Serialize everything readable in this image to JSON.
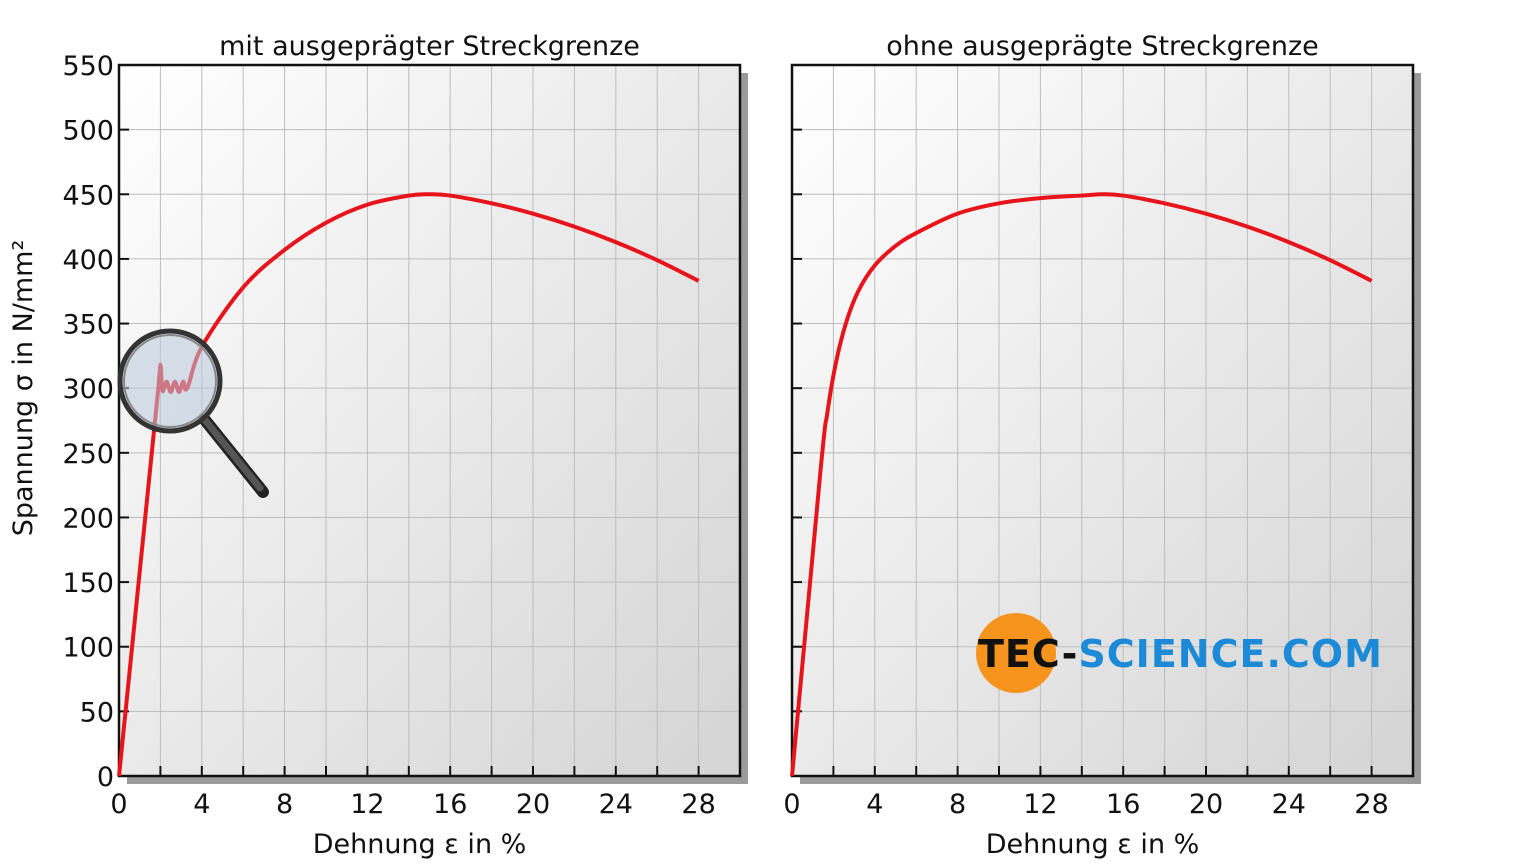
{
  "chart_data": [
    {
      "type": "line",
      "title": "mit ausgeprägter Streckgrenze",
      "xlabel": "Dehnung ε in %",
      "ylabel": "Spannung σ in N/mm²",
      "xlim": [
        0,
        30
      ],
      "ylim": [
        0,
        550
      ],
      "xticks": [
        0,
        4,
        8,
        12,
        16,
        20,
        24,
        28
      ],
      "yticks": [
        0,
        50,
        100,
        150,
        200,
        250,
        300,
        350,
        400,
        450,
        500,
        550
      ],
      "grid": true,
      "series": [
        {
          "color": "#e8141c",
          "x": [
            0,
            1.9,
            2.0,
            2.1,
            2.3,
            2.5,
            2.7,
            2.9,
            3.1,
            3.3,
            4,
            6,
            8,
            10,
            12,
            14,
            15,
            16,
            18,
            20,
            22,
            24,
            26,
            28
          ],
          "y": [
            0,
            300,
            318,
            298,
            305,
            297,
            305,
            297,
            305,
            300,
            332,
            378,
            407,
            428,
            442,
            449,
            450,
            449,
            443,
            435,
            425,
            413,
            399,
            383
          ]
        }
      ],
      "annotation": "magnifier-on-yield-point"
    },
    {
      "type": "line",
      "title": "ohne ausgeprägte Streckgrenze",
      "xlabel": "Dehnung ε in %",
      "xlim": [
        0,
        30
      ],
      "ylim": [
        0,
        550
      ],
      "xticks": [
        0,
        4,
        8,
        12,
        16,
        20,
        24,
        28
      ],
      "grid": true,
      "series": [
        {
          "color": "#e8141c",
          "x": [
            0,
            1.4,
            1.7,
            2.1,
            2.6,
            3.2,
            4,
            5,
            6,
            8,
            10,
            12,
            14,
            15,
            16,
            18,
            20,
            22,
            24,
            26,
            28
          ],
          "y": [
            0,
            240,
            280,
            318,
            350,
            375,
            395,
            410,
            420,
            435,
            443,
            447,
            449,
            450,
            449,
            443,
            435,
            425,
            413,
            399,
            383
          ]
        }
      ]
    }
  ],
  "logo": {
    "part1": "TEC-",
    "part2": "SCIENCE",
    "part3": ".COM",
    "orange": "#f7941d",
    "blue": "#1c8ad6"
  }
}
